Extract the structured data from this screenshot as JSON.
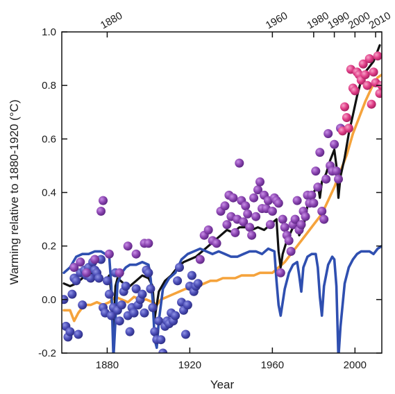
{
  "chart_data": {
    "type": "line",
    "xlabel": "Year",
    "ylabel": "Warming relative to 1880-1920 (°C)",
    "xlim": [
      1858,
      2013
    ],
    "ylim": [
      -0.2,
      1.0
    ],
    "xticks": [
      1880,
      1920,
      1960,
      2000
    ],
    "yticks": [
      -0.2,
      0.0,
      0.2,
      0.4,
      0.6,
      0.8,
      1.0
    ],
    "ytick_labels": [
      "-0.2",
      "0.0",
      "0.2",
      "0.4",
      "0.6",
      "0.8",
      "1.0"
    ],
    "top_ticks": [
      1880,
      1960,
      1980,
      1990,
      2000,
      2010
    ],
    "grid": false,
    "colors": {
      "black_line": "#111111",
      "orange_line": "#f5a33c",
      "blue_line": "#2f4fb0",
      "dots_early": "#4a4cb5",
      "dots_mid": "#8a44b0",
      "dots_late": "#df3c86"
    },
    "series": [
      {
        "color_key": "black_line",
        "x": [
          1859,
          1862,
          1865,
          1868,
          1871,
          1874,
          1877,
          1879,
          1881,
          1882,
          1883,
          1884,
          1885,
          1888,
          1891,
          1894,
          1897,
          1900,
          1902,
          1903,
          1905,
          1908,
          1911,
          1914,
          1917,
          1920,
          1923,
          1926,
          1929,
          1932,
          1935,
          1938,
          1941,
          1944,
          1947,
          1950,
          1953,
          1956,
          1959,
          1962,
          1963,
          1964,
          1965,
          1967,
          1970,
          1972,
          1973,
          1975,
          1977,
          1980,
          1982,
          1983,
          1984,
          1986,
          1988,
          1990,
          1991,
          1992,
          1993,
          1995,
          1997,
          1999,
          2001,
          2003,
          2005,
          2007,
          2009,
          2011,
          2012
        ],
        "y": [
          0.06,
          0.05,
          0.06,
          0.08,
          0.1,
          0.09,
          0.08,
          0.07,
          0.09,
          0.02,
          -0.12,
          0.05,
          0.08,
          0.06,
          0.05,
          0.07,
          0.09,
          0.08,
          0.05,
          -0.07,
          0.03,
          0.07,
          0.09,
          0.12,
          0.14,
          0.15,
          0.16,
          0.18,
          0.2,
          0.22,
          0.24,
          0.26,
          0.25,
          0.27,
          0.27,
          0.26,
          0.27,
          0.26,
          0.28,
          0.3,
          0.18,
          0.12,
          0.17,
          0.22,
          0.27,
          0.28,
          0.24,
          0.27,
          0.35,
          0.4,
          0.43,
          0.38,
          0.44,
          0.47,
          0.52,
          0.56,
          0.5,
          0.38,
          0.46,
          0.53,
          0.62,
          0.69,
          0.76,
          0.82,
          0.85,
          0.87,
          0.89,
          0.93,
          0.95
        ]
      },
      {
        "color_key": "orange_line",
        "x": [
          1859,
          1862,
          1864,
          1866,
          1868,
          1870,
          1872,
          1875,
          1878,
          1881,
          1884,
          1887,
          1890,
          1893,
          1896,
          1899,
          1902,
          1904,
          1906,
          1909,
          1912,
          1915,
          1918,
          1921,
          1924,
          1927,
          1930,
          1933,
          1936,
          1939,
          1942,
          1945,
          1948,
          1951,
          1954,
          1957,
          1960,
          1963,
          1966,
          1969,
          1972,
          1975,
          1978,
          1981,
          1984,
          1987,
          1990,
          1993,
          1996,
          1999,
          2002,
          2005,
          2008,
          2011,
          2013
        ],
        "y": [
          -0.04,
          -0.04,
          -0.08,
          -0.05,
          -0.03,
          -0.02,
          -0.02,
          -0.01,
          -0.02,
          -0.01,
          0.01,
          0.0,
          -0.01,
          0.01,
          0.0,
          0.0,
          -0.01,
          -0.02,
          0.0,
          0.01,
          0.02,
          0.03,
          0.04,
          0.04,
          0.05,
          0.06,
          0.07,
          0.07,
          0.08,
          0.08,
          0.08,
          0.09,
          0.09,
          0.09,
          0.1,
          0.1,
          0.1,
          0.12,
          0.14,
          0.17,
          0.2,
          0.23,
          0.26,
          0.29,
          0.32,
          0.37,
          0.42,
          0.48,
          0.54,
          0.62,
          0.68,
          0.74,
          0.79,
          0.83,
          0.84
        ]
      },
      {
        "color_key": "blue_line",
        "x": [
          1859,
          1862,
          1865,
          1868,
          1871,
          1874,
          1877,
          1879,
          1881,
          1882,
          1883,
          1884,
          1885,
          1887,
          1889,
          1891,
          1894,
          1897,
          1900,
          1901,
          1902,
          1903,
          1904,
          1905,
          1907,
          1910,
          1913,
          1916,
          1919,
          1922,
          1925,
          1928,
          1931,
          1934,
          1937,
          1940,
          1943,
          1946,
          1949,
          1952,
          1955,
          1958,
          1961,
          1962,
          1963,
          1964,
          1966,
          1968,
          1970,
          1972,
          1973,
          1974,
          1975,
          1977,
          1979,
          1981,
          1982,
          1983,
          1984,
          1985,
          1987,
          1989,
          1990,
          1991,
          1992,
          1993,
          1995,
          1997,
          1999,
          2001,
          2003,
          2005,
          2007,
          2009,
          2011,
          2013
        ],
        "y": [
          0.1,
          0.12,
          0.16,
          0.17,
          0.17,
          0.18,
          0.18,
          0.17,
          0.16,
          0.05,
          -0.22,
          -0.08,
          0.06,
          0.1,
          0.12,
          0.13,
          0.13,
          0.14,
          0.13,
          0.08,
          0.0,
          -0.15,
          -0.18,
          -0.08,
          0.04,
          0.08,
          0.1,
          0.15,
          0.17,
          0.18,
          0.19,
          0.18,
          0.17,
          0.18,
          0.17,
          0.16,
          0.16,
          0.17,
          0.18,
          0.18,
          0.17,
          0.19,
          0.18,
          0.07,
          -0.02,
          -0.06,
          0.04,
          0.1,
          0.13,
          0.14,
          0.09,
          0.03,
          0.12,
          0.16,
          0.17,
          0.17,
          0.12,
          0.01,
          -0.06,
          0.05,
          0.13,
          0.16,
          0.15,
          0.05,
          -0.22,
          -0.1,
          0.06,
          0.12,
          0.15,
          0.17,
          0.18,
          0.18,
          0.18,
          0.17,
          0.19,
          0.2
        ]
      },
      {
        "color_key": "dots_early",
        "x": [
          1859,
          1860,
          1861,
          1862,
          1863,
          1864,
          1865,
          1866,
          1867,
          1868,
          1869,
          1870,
          1871,
          1872,
          1873,
          1874,
          1875,
          1876,
          1877,
          1878,
          1879,
          1880,
          1881,
          1882,
          1883,
          1884,
          1885,
          1886,
          1887,
          1888,
          1889,
          1890,
          1891,
          1892,
          1893,
          1894,
          1895,
          1896,
          1897,
          1898,
          1899,
          1900,
          1901,
          1902,
          1903,
          1904,
          1905,
          1906,
          1907,
          1908,
          1909,
          1910,
          1911,
          1912,
          1913,
          1914,
          1915,
          1916,
          1917,
          1918,
          1919,
          1920,
          1921,
          1922,
          1923,
          1924
        ],
        "y": [
          0.0,
          -0.1,
          -0.14,
          -0.12,
          0.02,
          0.08,
          0.07,
          -0.13,
          0.1,
          -0.02,
          0.11,
          0.09,
          0.12,
          0.08,
          0.14,
          0.11,
          0.1,
          0.08,
          0.15,
          -0.03,
          -0.05,
          0.07,
          0.02,
          -0.06,
          -0.03,
          0.1,
          -0.04,
          -0.08,
          -0.02,
          0.03,
          0.05,
          -0.06,
          -0.12,
          -0.03,
          -0.05,
          0.04,
          -0.02,
          0.0,
          0.02,
          -0.05,
          0.11,
          0.1,
          0.04,
          -0.03,
          -0.12,
          -0.15,
          -0.08,
          -0.15,
          -0.2,
          -0.1,
          -0.08,
          -0.09,
          -0.05,
          -0.08,
          -0.06,
          0.07,
          0.12,
          -0.01,
          -0.04,
          -0.13,
          -0.02,
          0.05,
          0.09,
          0.03,
          0.05,
          0.06
        ]
      },
      {
        "color_key": "dots_mid",
        "x": [
          1864,
          1867,
          1870,
          1874,
          1877,
          1878,
          1881,
          1886,
          1890,
          1894,
          1898,
          1900,
          1925,
          1927,
          1929,
          1931,
          1933,
          1935,
          1937,
          1938,
          1939,
          1940,
          1941,
          1942,
          1943,
          1944,
          1945,
          1946,
          1947,
          1948,
          1949,
          1950,
          1951,
          1952,
          1953,
          1954,
          1955,
          1956,
          1957,
          1958,
          1959,
          1960,
          1961,
          1962,
          1963,
          1964,
          1965,
          1966,
          1967,
          1968,
          1969,
          1970,
          1971,
          1972,
          1973,
          1974,
          1975,
          1976,
          1977,
          1978,
          1979,
          1980,
          1981,
          1982,
          1983,
          1984,
          1985,
          1986,
          1987,
          1988,
          1989,
          1990,
          1991,
          1992,
          1993
        ],
        "y": [
          0.12,
          0.14,
          0.1,
          0.15,
          0.33,
          0.37,
          0.17,
          0.1,
          0.2,
          0.17,
          0.21,
          0.21,
          0.15,
          0.24,
          0.26,
          0.22,
          0.21,
          0.33,
          0.35,
          0.28,
          0.39,
          0.31,
          0.38,
          0.25,
          0.3,
          0.51,
          0.37,
          0.29,
          0.35,
          0.32,
          0.27,
          0.24,
          0.38,
          0.31,
          0.41,
          0.44,
          0.34,
          0.39,
          0.34,
          0.37,
          0.28,
          0.33,
          0.38,
          0.37,
          0.36,
          0.1,
          0.3,
          0.27,
          0.24,
          0.22,
          0.18,
          0.28,
          0.3,
          0.37,
          0.26,
          0.28,
          0.33,
          0.31,
          0.39,
          0.36,
          0.39,
          0.36,
          0.48,
          0.42,
          0.55,
          0.33,
          0.3,
          0.45,
          0.62,
          0.5,
          0.48,
          0.58,
          0.48,
          0.45,
          0.64
        ]
      },
      {
        "color_key": "dots_late",
        "x": [
          1994,
          1995,
          1996,
          1997,
          1998,
          1999,
          2000,
          2001,
          2002,
          2003,
          2004,
          2005,
          2006,
          2007,
          2008,
          2009,
          2010,
          2011,
          2012,
          2013
        ],
        "y": [
          0.63,
          0.72,
          0.68,
          0.64,
          0.86,
          0.79,
          0.78,
          0.85,
          0.84,
          0.82,
          0.88,
          0.84,
          0.8,
          0.9,
          0.73,
          0.85,
          0.81,
          0.91,
          0.77,
          0.8
        ]
      }
    ]
  }
}
